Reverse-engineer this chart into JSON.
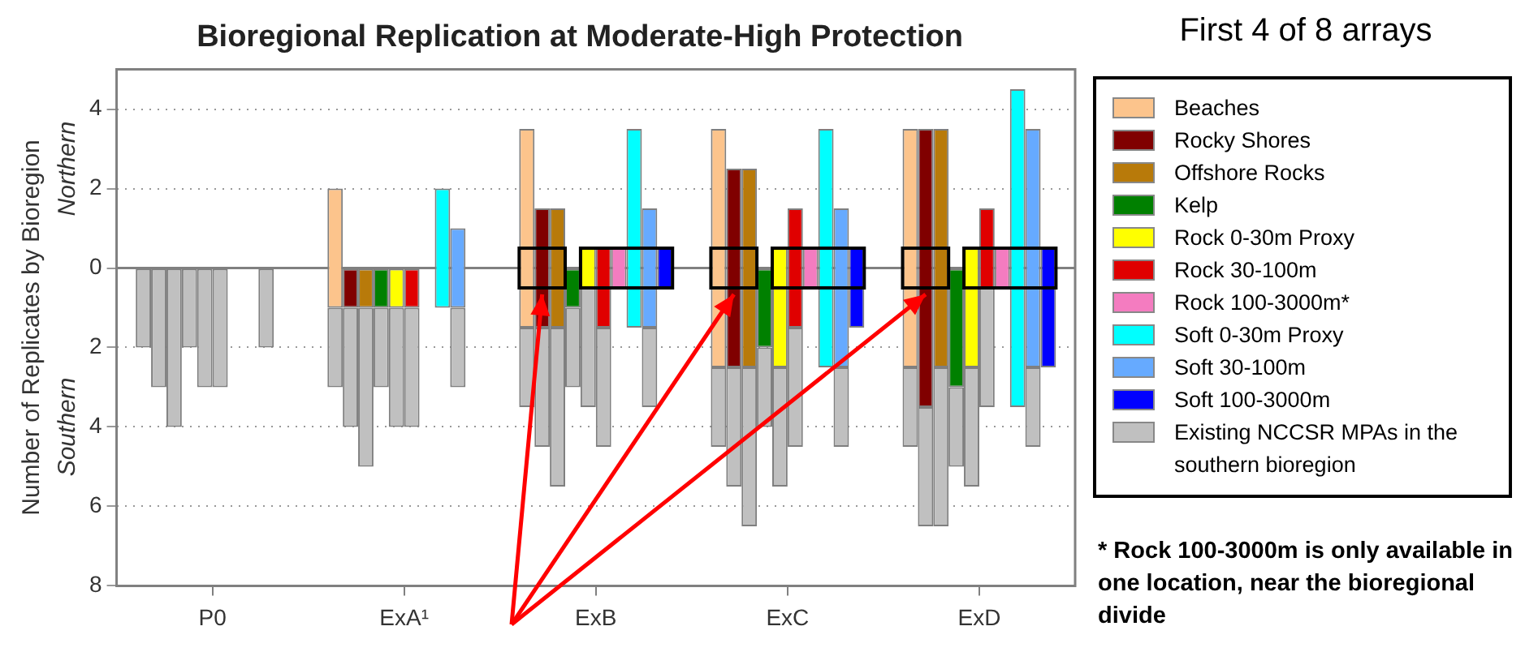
{
  "chart_data": {
    "type": "bar",
    "title": "Bioregional Replication at Moderate-High Protection",
    "ylabel": "Number of Replicates by Bioregion",
    "categories": [
      "P0",
      "ExA¹",
      "ExB",
      "ExC",
      "ExD"
    ],
    "ylim": [
      -8,
      5
    ],
    "yticks": [
      4,
      2,
      0,
      {
        "value": -2,
        "label": "2"
      },
      {
        "value": -4,
        "label": "4"
      },
      {
        "value": -6,
        "label": "6"
      },
      {
        "value": -8,
        "label": "8"
      }
    ],
    "grid": "y",
    "legend": "right",
    "ref_lines": [
      {
        "axis": "y",
        "value": 0,
        "color": "#808080"
      }
    ],
    "annotations": [
      "Northern",
      "Southern",
      "First 4 of 8 arrays",
      "* Rock 100-3000m is only available in one location, near the bioregional divide"
    ],
    "series": [
      {
        "name": "Beaches",
        "color": "#fcc48c",
        "base": [
          null,
          -1,
          -1.5,
          -2.5,
          -2.5
        ],
        "values": [
          null,
          3,
          5,
          6,
          6
        ]
      },
      {
        "name": "Rocky Shores",
        "color": "#800000",
        "base": [
          null,
          -1,
          -1.5,
          -2.5,
          -3.5
        ],
        "values": [
          null,
          1,
          3,
          5,
          7
        ]
      },
      {
        "name": "Offshore Rocks",
        "color": "#b87a0a",
        "base": [
          null,
          -1,
          -1.5,
          -2.5,
          -2.5
        ],
        "values": [
          null,
          1,
          3,
          5,
          6
        ]
      },
      {
        "name": "Kelp",
        "color": "#008000",
        "base": [
          null,
          -1,
          -1,
          -2,
          -3
        ],
        "values": [
          null,
          1,
          1,
          2,
          3
        ]
      },
      {
        "name": "Rock 0-30m Proxy",
        "color": "#ffff00",
        "base": [
          null,
          -1,
          -0.5,
          -2.5,
          -2.5
        ],
        "values": [
          null,
          1,
          1,
          3,
          3
        ]
      },
      {
        "name": "Rock 30-100m",
        "color": "#e00000",
        "base": [
          null,
          -1,
          -1.5,
          -1.5,
          -0.5
        ],
        "values": [
          null,
          1,
          2,
          3,
          2
        ]
      },
      {
        "name": "Rock 100-3000m*",
        "color": "#f47cc0",
        "base": [
          null,
          null,
          -0.5,
          -0.5,
          -0.5
        ],
        "values": [
          null,
          null,
          1,
          1,
          1
        ]
      },
      {
        "name": "Soft 0-30m Proxy",
        "color": "#00ffff",
        "base": [
          null,
          -1,
          -1.5,
          -2.5,
          -3.5
        ],
        "values": [
          null,
          3,
          5,
          6,
          8
        ]
      },
      {
        "name": "Soft 30-100m",
        "color": "#66aaff",
        "base": [
          null,
          -1,
          -1.5,
          -2.5,
          -2.5
        ],
        "values": [
          null,
          2,
          3,
          4,
          6
        ]
      },
      {
        "name": "Soft 100-3000m",
        "color": "#0000ff",
        "base": [
          null,
          null,
          -0.5,
          -1.5,
          -2.5
        ],
        "values": [
          null,
          null,
          1,
          2,
          3
        ]
      },
      {
        "name": "Existing NCCSR MPAs in the southern bioregion",
        "color": "#c0c0c0",
        "base": [
          0,
          -1,
          -1.5,
          -2.5,
          -2.5
        ],
        "values": [
          -2,
          -2,
          -2,
          -2,
          -2
        ]
      },
      {
        "color": "#c0c0c0",
        "base": [
          0,
          -1,
          -1.5,
          -2.5,
          -3.5
        ],
        "values": [
          -3,
          -3,
          -3,
          -3,
          -3
        ]
      },
      {
        "color": "#c0c0c0",
        "base": [
          0,
          -1,
          -1.5,
          -2.5,
          -2.5
        ],
        "values": [
          -4,
          -4,
          -4,
          -4,
          -4
        ]
      },
      {
        "color": "#c0c0c0",
        "base": [
          0,
          -1,
          -1,
          -2,
          -3
        ],
        "values": [
          -2,
          -2,
          -2,
          -2,
          -2
        ]
      },
      {
        "color": "#c0c0c0",
        "base": [
          0,
          -1,
          -0.5,
          -2.5,
          -2.5
        ],
        "values": [
          -3,
          -3,
          -3,
          -3,
          -3
        ]
      },
      {
        "color": "#c0c0c0",
        "base": [
          0,
          -1,
          -1.5,
          -1.5,
          -0.5
        ],
        "values": [
          -3,
          -3,
          -3,
          -3,
          -3
        ]
      },
      {
        "color": "#c0c0c0",
        "base": [
          null,
          null,
          null,
          null,
          null
        ],
        "values": [
          null,
          null,
          null,
          null,
          null
        ]
      },
      {
        "color": "#c0c0c0",
        "base": [
          null,
          null,
          null,
          null,
          null
        ],
        "values": [
          null,
          null,
          null,
          null,
          null
        ]
      },
      {
        "color": "#c0c0c0",
        "base": [
          0,
          -1,
          -1.5,
          -2.5,
          -2.5
        ],
        "values": [
          -2,
          -2,
          -2,
          -2,
          -2
        ]
      },
      {
        "color": "#c0c0c0",
        "base": [
          null,
          null,
          null,
          null,
          null
        ],
        "values": [
          null,
          null,
          null,
          null,
          null
        ]
      }
    ]
  }
}
